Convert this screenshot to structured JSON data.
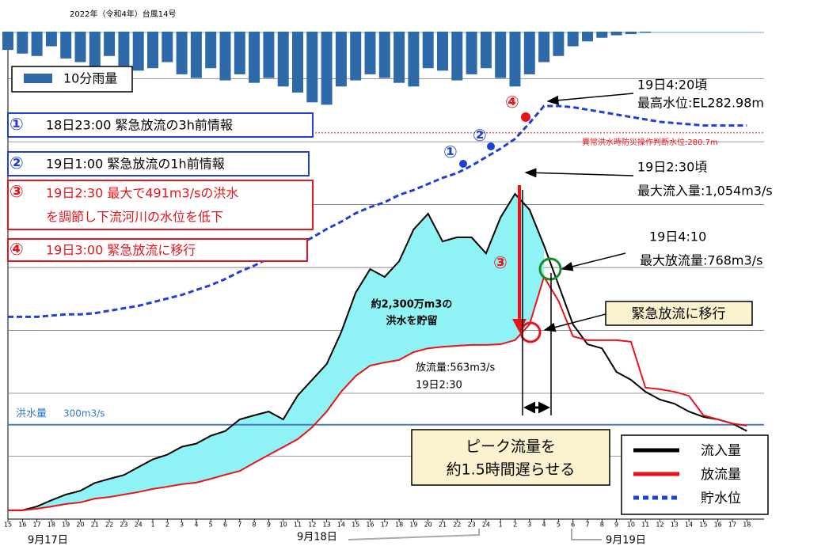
{
  "chart_data": {
    "type": "line",
    "title": "2022年（令和4年）台風14号",
    "categories": [
      "15",
      "16",
      "17",
      "18",
      "19",
      "20",
      "21",
      "22",
      "23",
      "24",
      "1",
      "2",
      "3",
      "4",
      "5",
      "6",
      "7",
      "8",
      "9",
      "10",
      "11",
      "12",
      "13",
      "14",
      "15",
      "16",
      "17",
      "18",
      "19",
      "20",
      "21",
      "22",
      "23",
      "24",
      "1",
      "2",
      "3",
      "4",
      "5",
      "6",
      "7",
      "8",
      "9",
      "10",
      "11",
      "12",
      "13",
      "14",
      "15",
      "16",
      "17",
      "18"
    ],
    "date_labels": [
      "9月17日",
      "9月18日",
      "9月19日"
    ],
    "ylim": [
      0,
      1550
    ],
    "yticks": [
      200,
      400,
      600,
      800,
      1000,
      1200,
      1400
    ],
    "grid": true,
    "y2lim": [
      249,
      289
    ],
    "y3lim": [
      0,
      40
    ],
    "series": [
      {
        "name": "流入量",
        "color": "#000000",
        "values": [
          28,
          28,
          40,
          60,
          78,
          90,
          115,
          128,
          140,
          165,
          190,
          205,
          230,
          240,
          265,
          280,
          317,
          330,
          342,
          317,
          393,
          443,
          493,
          594,
          720,
          795,
          770,
          820,
          921,
          971,
          883,
          896,
          896,
          845,
          959,
          1034,
          984,
          870,
          745,
          619,
          556,
          543,
          468,
          443,
          405,
          380,
          367,
          342,
          325,
          317,
          304,
          280
        ]
      },
      {
        "name": "放流量",
        "color": "#e8141b",
        "values": [
          28,
          28,
          33,
          40,
          48,
          53,
          65,
          70,
          78,
          86,
          96,
          103,
          111,
          116,
          128,
          141,
          153,
          179,
          204,
          229,
          254,
          292,
          342,
          405,
          455,
          488,
          498,
          506,
          531,
          543,
          548,
          551,
          554,
          554,
          556,
          569,
          619,
          770,
          694,
          581,
          569,
          569,
          569,
          564,
          418,
          413,
          405,
          392,
          330,
          317,
          304,
          297
        ]
      },
      {
        "name": "貯水位",
        "color": "#1f3fd6",
        "axis": "y2",
        "values": [
          265.6,
          265.6,
          265.6,
          265.7,
          265.8,
          265.8,
          265.9,
          266.1,
          266.3,
          266.5,
          266.8,
          267.1,
          267.4,
          267.8,
          268.2,
          268.7,
          269.3,
          269.8,
          270.4,
          271.0,
          271.5,
          272.1,
          272.8,
          273.4,
          274.1,
          274.6,
          275.0,
          275.6,
          276.0,
          276.5,
          277.0,
          277.4,
          278.0,
          278.7,
          279.4,
          280.2,
          281.5,
          282.9,
          282.9,
          282.8,
          282.6,
          282.4,
          282.2,
          282.0,
          281.8,
          281.6,
          281.5,
          281.4,
          281.3,
          281.3,
          281.3,
          281.3
        ]
      }
    ],
    "rain": {
      "name": "10分雨量",
      "color": "#2e6aa8",
      "axis": "y3",
      "values": [
        1.5,
        1.8,
        2.0,
        1.2,
        2.2,
        2.5,
        3.0,
        2.0,
        2.8,
        3.2,
        3.0,
        2.5,
        3.5,
        3.8,
        3.0,
        4.0,
        3.5,
        4.2,
        3.8,
        4.5,
        5.0,
        5.8,
        6.0,
        4.5,
        4.0,
        3.5,
        3.8,
        4.2,
        4.5,
        3.0,
        3.2,
        4.0,
        3.5,
        3.0,
        3.8,
        4.5,
        3.5,
        2.5,
        2.0,
        1.2,
        0.8,
        0.5,
        0.3,
        0.2,
        0.1,
        0,
        0,
        0,
        0,
        0,
        0,
        0
      ]
    },
    "flood_level": {
      "value": 300,
      "label": "洪水量",
      "value_label": "300m3/s"
    },
    "threshold_level": {
      "value": 280.7,
      "label": "異常洪水時防災操作判断水位:280.7m"
    },
    "info": [
      {
        "mark": "①",
        "lines": [
          "18日23:00 緊急放流の3h前情報"
        ]
      },
      {
        "mark": "②",
        "lines": [
          "19日1:00 緊急放流の1h前情報"
        ]
      },
      {
        "mark": "③",
        "lines": [
          "19日2:30 最大で491m3/sの洪水",
          "を調節し下流河川の水位を低下"
        ]
      },
      {
        "mark": "④",
        "lines": [
          "19日3:00 緊急放流に移行"
        ]
      }
    ],
    "annotations": {
      "max_level": [
        "19日4:20頃",
        "最高水位:EL282.98m"
      ],
      "max_inflow": [
        "19日2:30頃",
        "最大流入量:1,054m3/s"
      ],
      "max_outflow": [
        "19日4:10",
        "最大放流量:768m3/s"
      ],
      "transition": "緊急放流に移行",
      "storage": [
        "約2,300万m3の",
        "洪水を貯留"
      ],
      "outflow_at_peak": [
        "放流量:563m3/s",
        "19日2:30"
      ],
      "delay": [
        "ピーク流量を",
        "約1.5時間遅らせる"
      ],
      "curve_marks": [
        "①",
        "②",
        "④"
      ],
      "arrow_mark": "③"
    }
  }
}
